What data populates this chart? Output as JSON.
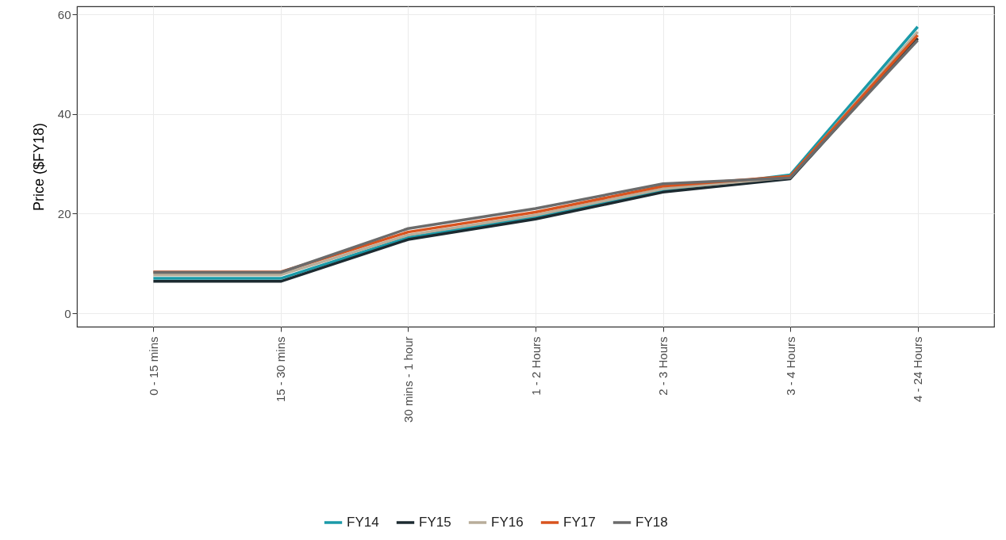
{
  "chart_data": {
    "type": "line",
    "ylabel": "Price ($FY18)",
    "categories": [
      "0 - 15 mins",
      "15 - 30 mins",
      "30 mins - 1 hour",
      "1 - 2 Hours",
      "2 - 3 Hours",
      "3 - 4 Hours",
      "4 - 24 Hours"
    ],
    "series": [
      {
        "name": "FY14",
        "color": "#1a9aa8",
        "values": [
          7.0,
          7.0,
          15.2,
          19.3,
          24.6,
          27.8,
          57.5
        ]
      },
      {
        "name": "FY15",
        "color": "#1c2a30",
        "values": [
          6.4,
          6.4,
          14.8,
          18.9,
          24.3,
          27.0,
          55.2
        ]
      },
      {
        "name": "FY16",
        "color": "#b8ad9a",
        "values": [
          7.7,
          7.7,
          15.7,
          19.7,
          25.0,
          27.3,
          56.5
        ]
      },
      {
        "name": "FY17",
        "color": "#d9531e",
        "values": [
          8.3,
          8.3,
          16.3,
          20.3,
          25.5,
          27.5,
          55.8
        ]
      },
      {
        "name": "FY18",
        "color": "#6b6b6b",
        "values": [
          8.2,
          8.2,
          17.0,
          21.0,
          26.0,
          27.2,
          54.8
        ]
      }
    ],
    "ylim": [
      -2.7,
      61.6
    ],
    "yticks": [
      0,
      20,
      40,
      60
    ],
    "grid": true,
    "legend": "bottom"
  }
}
